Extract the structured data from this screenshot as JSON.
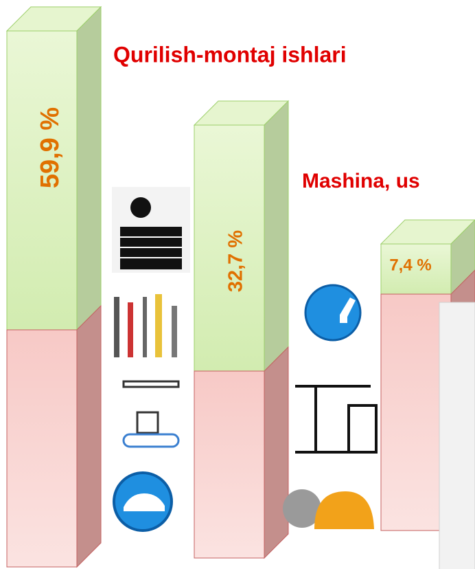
{
  "headings": [
    "Qurilish-montaj ishlari",
    "Mashina, us"
  ],
  "bars": [
    {
      "label": "59,9 %"
    },
    {
      "label": "32,7 %"
    },
    {
      "label": "7,4 %"
    }
  ]
}
